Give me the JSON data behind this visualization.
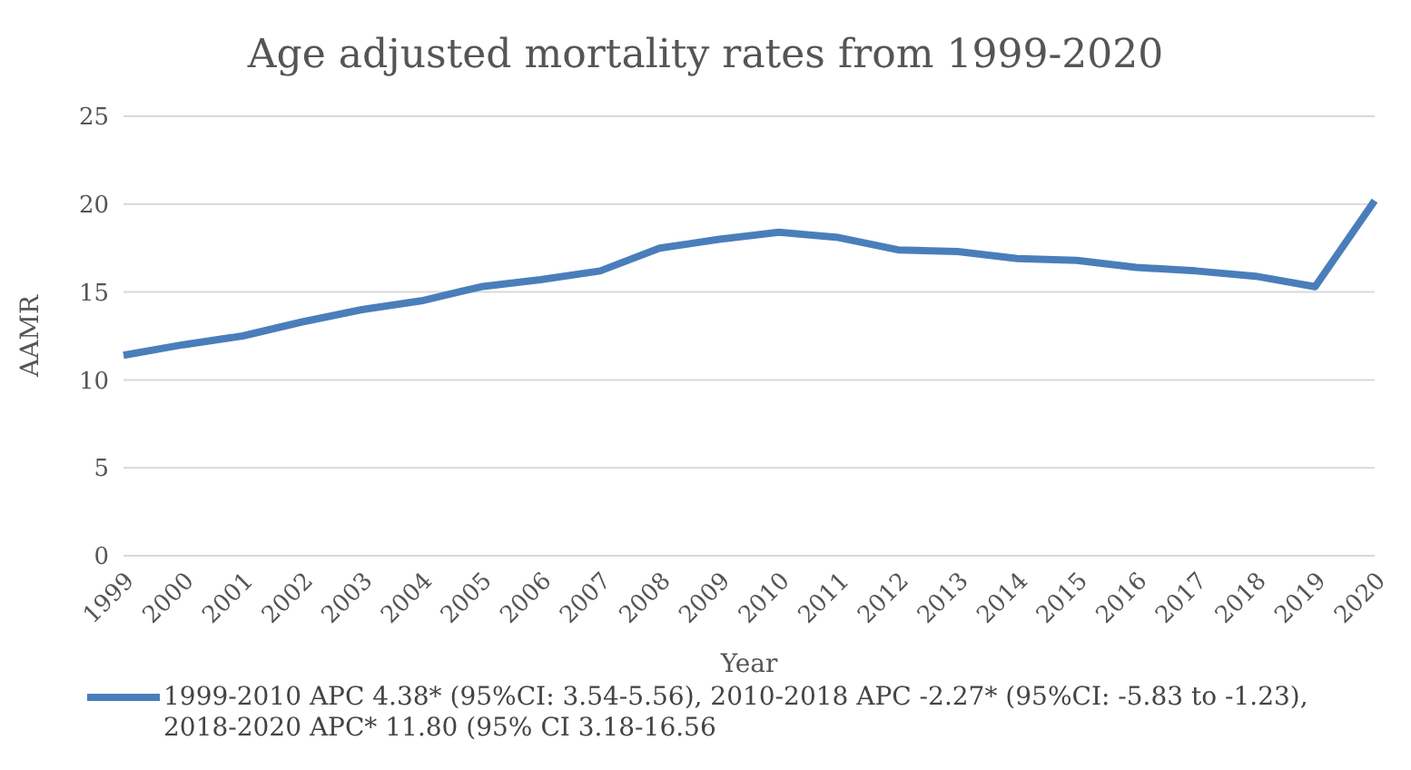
{
  "chart_data": {
    "type": "line",
    "title": "Age adjusted mortality rates from 1999-2020",
    "xlabel": "Year",
    "ylabel": "AAMR",
    "categories": [
      "1999",
      "2000",
      "2001",
      "2002",
      "2003",
      "2004",
      "2005",
      "2006",
      "2007",
      "2008",
      "2009",
      "2010",
      "2011",
      "2012",
      "2013",
      "2014",
      "2015",
      "2016",
      "2017",
      "2018",
      "2019",
      "2020"
    ],
    "series": [
      {
        "name": "1999-2010 APC 4.38* (95%CI: 3.54-5.56), 2010-2018 APC -2.27* (95%CI: -5.83 to -1.23), 2018-2020 APC* 11.80 (95% CI 3.18-16.56",
        "color": "#4a7ebb",
        "values": [
          11.4,
          12.0,
          12.5,
          13.3,
          14.0,
          14.5,
          15.3,
          15.7,
          16.2,
          17.5,
          18.0,
          18.4,
          18.1,
          17.4,
          17.3,
          16.9,
          16.8,
          16.4,
          16.2,
          15.9,
          15.3,
          20.2
        ]
      }
    ],
    "ylim": [
      0,
      25
    ],
    "yticks": [
      0,
      5,
      10,
      15,
      20,
      25
    ],
    "grid": "y",
    "legend": "bottom",
    "marker": "none",
    "line_style": "solid"
  }
}
